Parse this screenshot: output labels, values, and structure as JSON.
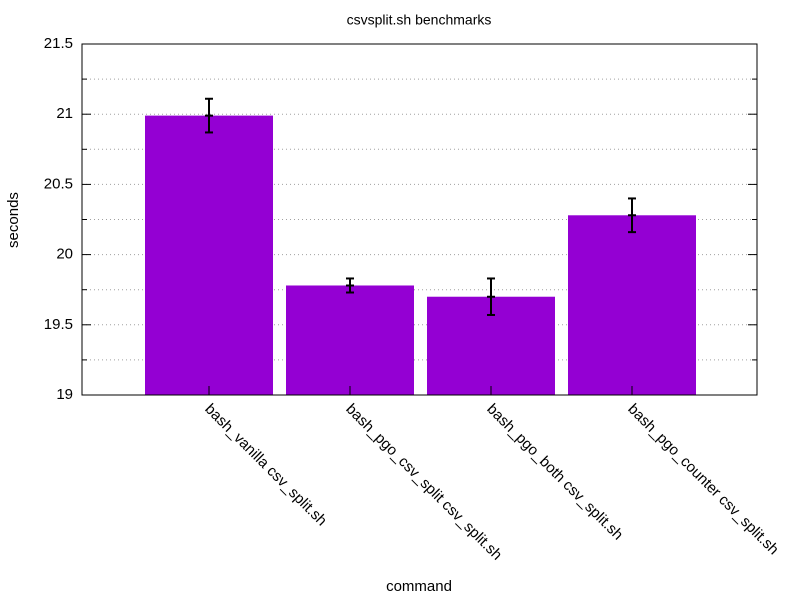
{
  "chart_data": {
    "type": "bar",
    "title": "csvsplit.sh benchmarks",
    "x_label": "command",
    "y_label": "seconds",
    "categories": [
      "bash_vanilla csv_split.sh",
      "bash_pgo_csv_split csv_split.sh",
      "bash_pgo_both csv_split.sh",
      "bash_pgo_counter csv_split.sh"
    ],
    "values": [
      20.99,
      19.78,
      19.7,
      20.28
    ],
    "errors": [
      0.12,
      0.05,
      0.13,
      0.12
    ],
    "color": "#9400d3",
    "ylim": [
      19,
      21.5
    ],
    "yticks": [
      19,
      19.5,
      20,
      20.5,
      21,
      21.5
    ],
    "minor_yticks": [
      19.25,
      19.75,
      20.25,
      20.75,
      21.25
    ],
    "grid": true
  }
}
